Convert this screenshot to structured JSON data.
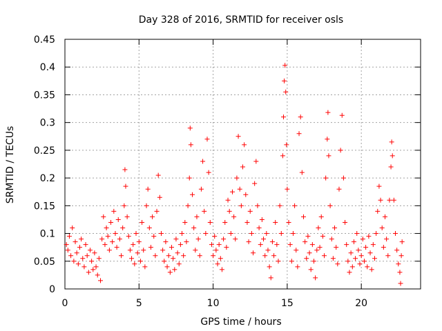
{
  "chart_data": {
    "type": "scatter",
    "title": "Day 328 of 2016, SRMTID for receiver osls",
    "xlabel": "GPS time / hours",
    "ylabel": "SRMTID / TECUs",
    "xlim": [
      0,
      24
    ],
    "ylim": [
      0,
      0.45
    ],
    "xticks": [
      "0",
      "5",
      "10",
      "15",
      "20"
    ],
    "yticks": [
      "0",
      "0.05",
      "0.1",
      "0.15",
      "0.2",
      "0.25",
      "0.3",
      "0.35",
      "0.4",
      "0.45"
    ],
    "grid": true,
    "marker": "plus",
    "color": "#ff0000",
    "points": [
      [
        0.1,
        0.08
      ],
      [
        0.2,
        0.07
      ],
      [
        0.3,
        0.095
      ],
      [
        0.4,
        0.06
      ],
      [
        0.5,
        0.11
      ],
      [
        0.6,
        0.05
      ],
      [
        0.7,
        0.085
      ],
      [
        0.8,
        0.065
      ],
      [
        0.9,
        0.045
      ],
      [
        1.0,
        0.075
      ],
      [
        1.1,
        0.09
      ],
      [
        1.2,
        0.055
      ],
      [
        1.3,
        0.04
      ],
      [
        1.4,
        0.08
      ],
      [
        1.5,
        0.06
      ],
      [
        1.6,
        0.03
      ],
      [
        1.7,
        0.07
      ],
      [
        1.8,
        0.05
      ],
      [
        1.9,
        0.035
      ],
      [
        2.0,
        0.065
      ],
      [
        2.1,
        0.04
      ],
      [
        2.2,
        0.025
      ],
      [
        2.3,
        0.055
      ],
      [
        2.4,
        0.015
      ],
      [
        2.5,
        0.09
      ],
      [
        2.6,
        0.13
      ],
      [
        2.7,
        0.08
      ],
      [
        2.8,
        0.11
      ],
      [
        2.9,
        0.095
      ],
      [
        3.0,
        0.07
      ],
      [
        3.1,
        0.12
      ],
      [
        3.2,
        0.085
      ],
      [
        3.3,
        0.14
      ],
      [
        3.4,
        0.1
      ],
      [
        3.5,
        0.075
      ],
      [
        3.6,
        0.125
      ],
      [
        3.7,
        0.09
      ],
      [
        3.8,
        0.06
      ],
      [
        3.9,
        0.11
      ],
      [
        4.0,
        0.15
      ],
      [
        4.05,
        0.215
      ],
      [
        4.1,
        0.185
      ],
      [
        4.2,
        0.13
      ],
      [
        4.3,
        0.095
      ],
      [
        4.4,
        0.07
      ],
      [
        4.5,
        0.055
      ],
      [
        4.6,
        0.08
      ],
      [
        4.7,
        0.045
      ],
      [
        4.8,
        0.1
      ],
      [
        4.9,
        0.065
      ],
      [
        5.0,
        0.085
      ],
      [
        5.1,
        0.05
      ],
      [
        5.2,
        0.12
      ],
      [
        5.3,
        0.07
      ],
      [
        5.4,
        0.04
      ],
      [
        5.5,
        0.15
      ],
      [
        5.6,
        0.18
      ],
      [
        5.7,
        0.11
      ],
      [
        5.8,
        0.075
      ],
      [
        5.9,
        0.13
      ],
      [
        6.0,
        0.095
      ],
      [
        6.1,
        0.06
      ],
      [
        6.2,
        0.14
      ],
      [
        6.3,
        0.205
      ],
      [
        6.4,
        0.165
      ],
      [
        6.5,
        0.1
      ],
      [
        6.6,
        0.07
      ],
      [
        6.7,
        0.05
      ],
      [
        6.8,
        0.085
      ],
      [
        6.9,
        0.04
      ],
      [
        7.0,
        0.06
      ],
      [
        7.1,
        0.03
      ],
      [
        7.2,
        0.075
      ],
      [
        7.3,
        0.055
      ],
      [
        7.4,
        0.035
      ],
      [
        7.5,
        0.09
      ],
      [
        7.6,
        0.065
      ],
      [
        7.7,
        0.045
      ],
      [
        7.8,
        0.08
      ],
      [
        7.9,
        0.1
      ],
      [
        8.0,
        0.06
      ],
      [
        8.1,
        0.12
      ],
      [
        8.2,
        0.085
      ],
      [
        8.3,
        0.15
      ],
      [
        8.4,
        0.2
      ],
      [
        8.45,
        0.29
      ],
      [
        8.5,
        0.26
      ],
      [
        8.6,
        0.17
      ],
      [
        8.7,
        0.11
      ],
      [
        8.8,
        0.07
      ],
      [
        8.9,
        0.13
      ],
      [
        9.0,
        0.09
      ],
      [
        9.1,
        0.06
      ],
      [
        9.2,
        0.18
      ],
      [
        9.3,
        0.23
      ],
      [
        9.4,
        0.14
      ],
      [
        9.5,
        0.1
      ],
      [
        9.6,
        0.27
      ],
      [
        9.7,
        0.21
      ],
      [
        9.8,
        0.12
      ],
      [
        9.9,
        0.08
      ],
      [
        10.0,
        0.06
      ],
      [
        10.1,
        0.095
      ],
      [
        10.2,
        0.07
      ],
      [
        10.3,
        0.045
      ],
      [
        10.4,
        0.08
      ],
      [
        10.5,
        0.055
      ],
      [
        10.6,
        0.035
      ],
      [
        10.7,
        0.09
      ],
      [
        10.8,
        0.12
      ],
      [
        10.9,
        0.075
      ],
      [
        11.0,
        0.16
      ],
      [
        11.1,
        0.14
      ],
      [
        11.2,
        0.1
      ],
      [
        11.3,
        0.175
      ],
      [
        11.4,
        0.13
      ],
      [
        11.5,
        0.09
      ],
      [
        11.6,
        0.2
      ],
      [
        11.7,
        0.275
      ],
      [
        11.8,
        0.18
      ],
      [
        11.9,
        0.15
      ],
      [
        12.0,
        0.22
      ],
      [
        12.1,
        0.26
      ],
      [
        12.2,
        0.17
      ],
      [
        12.3,
        0.12
      ],
      [
        12.4,
        0.085
      ],
      [
        12.5,
        0.14
      ],
      [
        12.6,
        0.1
      ],
      [
        12.7,
        0.065
      ],
      [
        12.8,
        0.19
      ],
      [
        12.9,
        0.23
      ],
      [
        13.0,
        0.15
      ],
      [
        13.1,
        0.11
      ],
      [
        13.2,
        0.08
      ],
      [
        13.3,
        0.125
      ],
      [
        13.4,
        0.09
      ],
      [
        13.5,
        0.06
      ],
      [
        13.6,
        0.1
      ],
      [
        13.7,
        0.07
      ],
      [
        13.8,
        0.04
      ],
      [
        13.9,
        0.02
      ],
      [
        14.0,
        0.085
      ],
      [
        14.1,
        0.06
      ],
      [
        14.2,
        0.12
      ],
      [
        14.3,
        0.08
      ],
      [
        14.4,
        0.05
      ],
      [
        14.5,
        0.15
      ],
      [
        14.6,
        0.1
      ],
      [
        14.7,
        0.24
      ],
      [
        14.75,
        0.31
      ],
      [
        14.8,
        0.375
      ],
      [
        14.85,
        0.403
      ],
      [
        14.9,
        0.355
      ],
      [
        14.95,
        0.26
      ],
      [
        15.0,
        0.18
      ],
      [
        15.1,
        0.12
      ],
      [
        15.2,
        0.08
      ],
      [
        15.3,
        0.05
      ],
      [
        15.4,
        0.1
      ],
      [
        15.5,
        0.15
      ],
      [
        15.6,
        0.07
      ],
      [
        15.7,
        0.04
      ],
      [
        15.8,
        0.28
      ],
      [
        15.9,
        0.31
      ],
      [
        16.0,
        0.21
      ],
      [
        16.1,
        0.13
      ],
      [
        16.2,
        0.085
      ],
      [
        16.3,
        0.055
      ],
      [
        16.4,
        0.095
      ],
      [
        16.5,
        0.065
      ],
      [
        16.6,
        0.035
      ],
      [
        16.7,
        0.08
      ],
      [
        16.8,
        0.05
      ],
      [
        16.9,
        0.02
      ],
      [
        17.0,
        0.07
      ],
      [
        17.1,
        0.11
      ],
      [
        17.2,
        0.075
      ],
      [
        17.3,
        0.13
      ],
      [
        17.4,
        0.095
      ],
      [
        17.5,
        0.06
      ],
      [
        17.6,
        0.2
      ],
      [
        17.7,
        0.27
      ],
      [
        17.75,
        0.318
      ],
      [
        17.8,
        0.24
      ],
      [
        17.9,
        0.15
      ],
      [
        18.0,
        0.09
      ],
      [
        18.1,
        0.055
      ],
      [
        18.2,
        0.11
      ],
      [
        18.3,
        0.075
      ],
      [
        18.4,
        0.045
      ],
      [
        18.5,
        0.18
      ],
      [
        18.6,
        0.25
      ],
      [
        18.7,
        0.313
      ],
      [
        18.8,
        0.2
      ],
      [
        18.9,
        0.12
      ],
      [
        19.0,
        0.08
      ],
      [
        19.1,
        0.05
      ],
      [
        19.2,
        0.03
      ],
      [
        19.3,
        0.065
      ],
      [
        19.4,
        0.04
      ],
      [
        19.5,
        0.085
      ],
      [
        19.6,
        0.055
      ],
      [
        19.7,
        0.1
      ],
      [
        19.8,
        0.07
      ],
      [
        19.9,
        0.045
      ],
      [
        20.0,
        0.06
      ],
      [
        20.1,
        0.09
      ],
      [
        20.2,
        0.05
      ],
      [
        20.3,
        0.075
      ],
      [
        20.4,
        0.04
      ],
      [
        20.5,
        0.095
      ],
      [
        20.6,
        0.065
      ],
      [
        20.7,
        0.035
      ],
      [
        20.8,
        0.08
      ],
      [
        20.9,
        0.055
      ],
      [
        21.0,
        0.1
      ],
      [
        21.1,
        0.14
      ],
      [
        21.2,
        0.185
      ],
      [
        21.3,
        0.16
      ],
      [
        21.4,
        0.11
      ],
      [
        21.5,
        0.075
      ],
      [
        21.6,
        0.13
      ],
      [
        21.7,
        0.09
      ],
      [
        21.8,
        0.06
      ],
      [
        21.9,
        0.16
      ],
      [
        22.0,
        0.22
      ],
      [
        22.05,
        0.265
      ],
      [
        22.1,
        0.24
      ],
      [
        22.2,
        0.16
      ],
      [
        22.3,
        0.1
      ],
      [
        22.4,
        0.07
      ],
      [
        22.5,
        0.045
      ],
      [
        22.6,
        0.03
      ],
      [
        22.65,
        0.01
      ],
      [
        22.7,
        0.06
      ],
      [
        22.75,
        0.085
      ]
    ]
  }
}
